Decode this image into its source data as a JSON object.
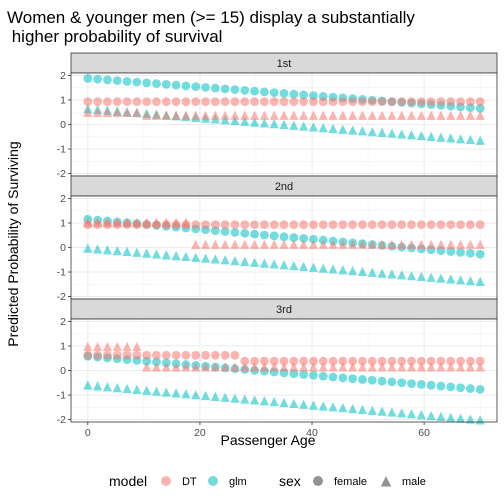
{
  "chart_data": {
    "type": "scatter",
    "title_line1": "Women & younger men (>= 15) display a substantially",
    "title_line2": " higher probability of survival",
    "xlabel": "Passenger Age",
    "ylabel": "Predicted Probability of Surviving",
    "xlim": [
      -3,
      73
    ],
    "ylim": [
      -2.1,
      2.1
    ],
    "x_ticks": [
      0,
      20,
      40,
      60
    ],
    "y_ticks": [
      -2,
      -1,
      0,
      1,
      2
    ],
    "grid": true,
    "legend_position": "bottom",
    "colors": {
      "DT": "#F8766D",
      "glm": "#00BFC4"
    },
    "legend": {
      "model_title": "model",
      "model_items": [
        "DT",
        "glm"
      ],
      "sex_title": "sex",
      "sex_items": [
        "female",
        "male"
      ]
    },
    "age_step": 1.75,
    "age_max": 70.5,
    "panels": [
      {
        "label": "1st",
        "series": [
          {
            "model": "DT",
            "sex": "female",
            "segments": [
              {
                "from": 0,
                "to": 70.5,
                "value": 0.93
              }
            ]
          },
          {
            "model": "DT",
            "sex": "male",
            "segments": [
              {
                "from": 0,
                "to": 10,
                "value": 0.47
              },
              {
                "from": 10,
                "to": 70.5,
                "value": 0.35
              }
            ]
          },
          {
            "model": "glm",
            "sex": "female",
            "line": [
              [
                0,
                1.88
              ],
              [
                70.5,
                0.65
              ]
            ]
          },
          {
            "model": "glm",
            "sex": "male",
            "line": [
              [
                0,
                0.62
              ],
              [
                70.5,
                -0.68
              ]
            ]
          }
        ]
      },
      {
        "label": "2nd",
        "series": [
          {
            "model": "DT",
            "sex": "female",
            "segments": [
              {
                "from": 0,
                "to": 70.5,
                "value": 0.93
              }
            ]
          },
          {
            "model": "DT",
            "sex": "male",
            "segments": [
              {
                "from": 0,
                "to": 18,
                "value": 1.0
              },
              {
                "from": 18,
                "to": 70.5,
                "value": 0.1
              }
            ]
          },
          {
            "model": "glm",
            "sex": "female",
            "line": [
              [
                0,
                1.15
              ],
              [
                70.5,
                -0.28
              ]
            ]
          },
          {
            "model": "glm",
            "sex": "male",
            "line": [
              [
                0,
                -0.05
              ],
              [
                70.5,
                -1.42
              ]
            ]
          }
        ]
      },
      {
        "label": "3rd",
        "series": [
          {
            "model": "DT",
            "sex": "female",
            "segments": [
              {
                "from": 0,
                "to": 26.5,
                "value": 0.62
              },
              {
                "from": 26.5,
                "to": 70.5,
                "value": 0.38
              }
            ]
          },
          {
            "model": "DT",
            "sex": "male",
            "segments": [
              {
                "from": 0,
                "to": 9,
                "value": 0.95
              },
              {
                "from": 9,
                "to": 70.5,
                "value": 0.12
              }
            ]
          },
          {
            "model": "glm",
            "sex": "female",
            "line": [
              [
                0,
                0.58
              ],
              [
                70.5,
                -0.78
              ]
            ]
          },
          {
            "model": "glm",
            "sex": "male",
            "line": [
              [
                0,
                -0.62
              ],
              [
                70.5,
                -2.05
              ]
            ]
          }
        ]
      }
    ]
  }
}
